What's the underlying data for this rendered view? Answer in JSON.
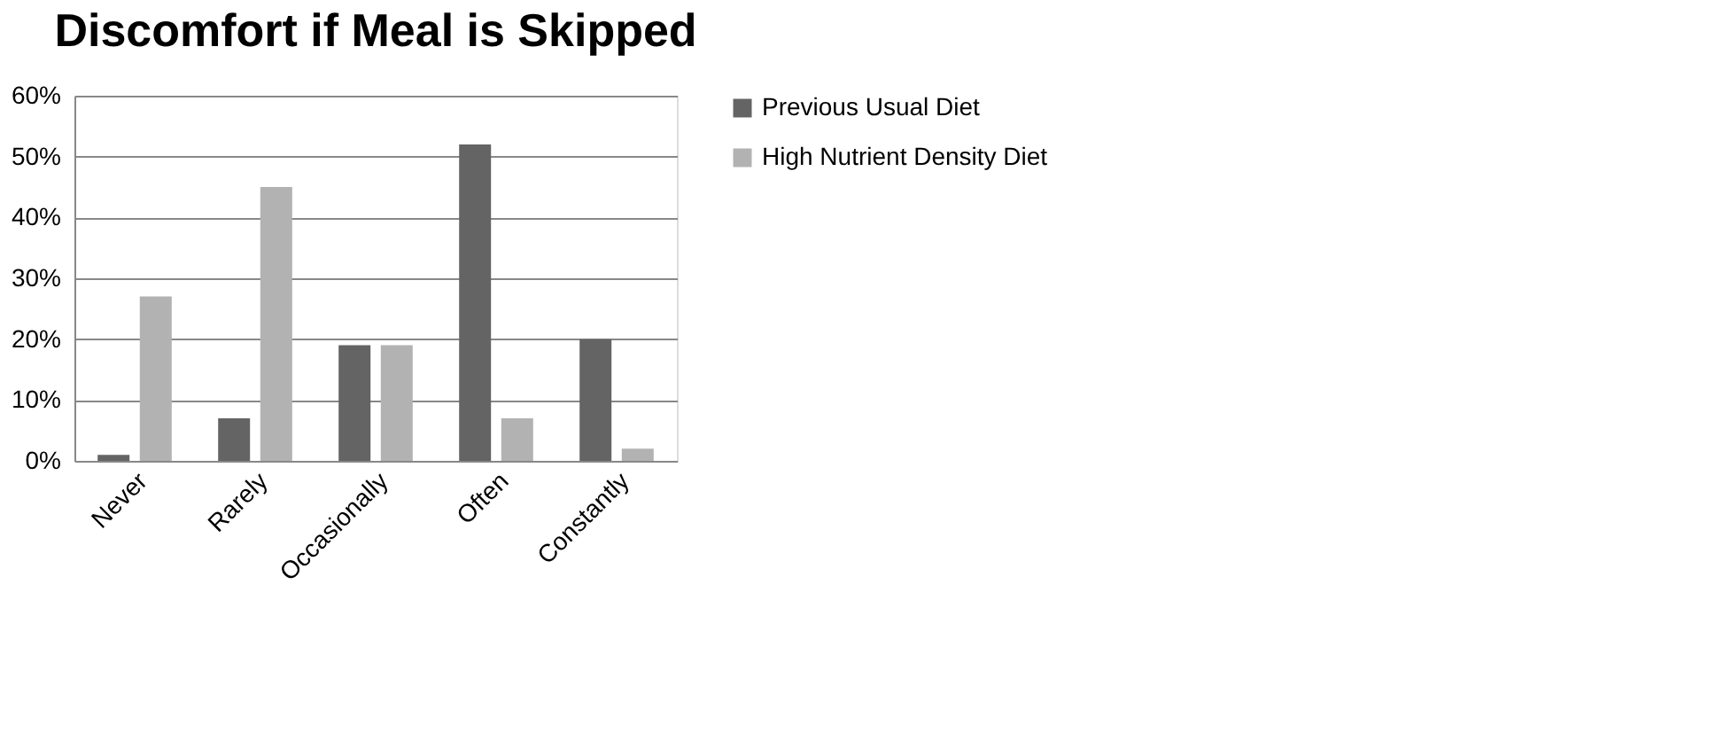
{
  "chart_data": {
    "type": "bar",
    "title": "Discomfort if Meal is Skipped",
    "categories": [
      "Never",
      "Rarely",
      "Occasionally",
      "Often",
      "Constantly"
    ],
    "series": [
      {
        "name": "Previous Usual Diet",
        "color": "#646464",
        "values": [
          1,
          7,
          19,
          52,
          20
        ]
      },
      {
        "name": "High Nutrient Density Diet",
        "color": "#b2b2b2",
        "values": [
          27,
          45,
          19,
          7,
          2
        ]
      }
    ],
    "ylim": [
      0,
      60
    ],
    "yticks": [
      {
        "value": 0,
        "label": "0%"
      },
      {
        "value": 10,
        "label": "10%"
      },
      {
        "value": 20,
        "label": "20%"
      },
      {
        "value": 30,
        "label": "30%"
      },
      {
        "value": 40,
        "label": "40%"
      },
      {
        "value": 50,
        "label": "50%"
      },
      {
        "value": 60,
        "label": "60%"
      }
    ],
    "grid": "y",
    "legend": "right"
  }
}
